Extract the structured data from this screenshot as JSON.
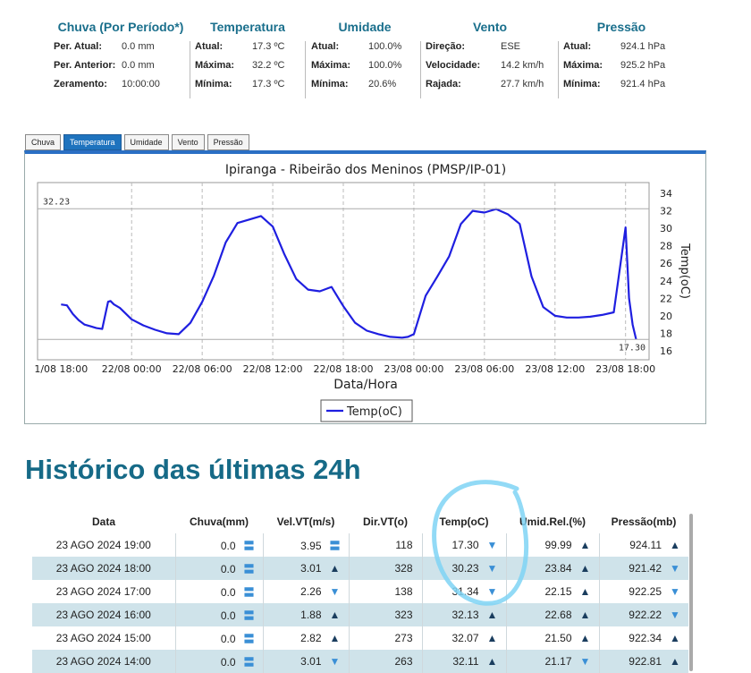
{
  "summary": {
    "chuva": {
      "title": "Chuva (Por Período*)",
      "rows": [
        {
          "label": "Per. Atual:",
          "value": "0.0 mm"
        },
        {
          "label": "Per. Anterior:",
          "value": "0.0 mm"
        },
        {
          "label": "Zeramento:",
          "value": "10:00:00"
        }
      ]
    },
    "temperatura": {
      "title": "Temperatura",
      "rows": [
        {
          "label": "Atual:",
          "value": "17.3 ºC"
        },
        {
          "label": "Máxima:",
          "value": "32.2 ºC"
        },
        {
          "label": "Mínima:",
          "value": "17.3 ºC"
        }
      ]
    },
    "umidade": {
      "title": "Umidade",
      "rows": [
        {
          "label": "Atual:",
          "value": "100.0%"
        },
        {
          "label": "Máxima:",
          "value": "100.0%"
        },
        {
          "label": "Mínima:",
          "value": "20.6%"
        }
      ]
    },
    "vento": {
      "title": "Vento",
      "rows": [
        {
          "label": "Direção:",
          "value": "ESE"
        },
        {
          "label": "Velocidade:",
          "value": "14.2 km/h"
        },
        {
          "label": "Rajada:",
          "value": "27.7 km/h"
        }
      ]
    },
    "pressao": {
      "title": "Pressão",
      "rows": [
        {
          "label": "Atual:",
          "value": "924.1 hPa"
        },
        {
          "label": "Máxima:",
          "value": "925.2 hPa"
        },
        {
          "label": "Mínima:",
          "value": "921.4 hPa"
        }
      ]
    }
  },
  "tabs": [
    "Chuva",
    "Temperatura",
    "Umidade",
    "Vento",
    "Pressão"
  ],
  "active_tab": "Temperatura",
  "chart_data": {
    "type": "line",
    "title": "Ipiranga - Ribeirão dos Meninos (PMSP/IP-01)",
    "xlabel": "Data/Hora",
    "ylabel": "Temp(oC)",
    "x_ticks": [
      "1/08 18:00",
      "22/08 00:00",
      "22/08 06:00",
      "22/08 12:00",
      "22/08 18:00",
      "23/08 00:00",
      "23/08 06:00",
      "23/08 12:00",
      "23/08 18:00"
    ],
    "y_ticks": [
      "16",
      "18",
      "20",
      "22",
      "24",
      "26",
      "28",
      "30",
      "32",
      "34"
    ],
    "ylim": [
      16,
      34
    ],
    "grid": true,
    "legend": "bottom-center",
    "max_label": "32.23",
    "last_label": "17.30",
    "series": [
      {
        "name": "Temp(oC)",
        "color": "#1f1fe0",
        "x_hours": [
          0,
          0.5,
          1,
          1.5,
          2,
          2.5,
          3,
          3.5,
          4,
          4.2,
          4.5,
          5,
          6,
          7,
          8,
          9,
          10,
          11,
          12,
          13,
          14,
          15,
          16,
          17,
          17.5,
          18,
          19,
          20,
          21,
          22,
          23,
          24,
          25,
          26,
          27,
          28,
          29,
          29.5,
          30,
          31,
          32,
          33,
          34,
          35,
          36,
          37,
          38,
          39,
          40,
          41,
          42,
          43,
          44,
          45,
          46,
          47,
          48,
          48.3,
          48.6,
          48.9
        ],
        "values": [
          21.3,
          21.2,
          20.2,
          19.5,
          19.0,
          18.8,
          18.6,
          18.5,
          21.6,
          21.7,
          21.3,
          20.9,
          19.6,
          18.9,
          18.4,
          18.0,
          17.9,
          19.2,
          21.6,
          24.6,
          28.4,
          30.6,
          31.0,
          31.4,
          30.8,
          30.2,
          27.0,
          24.2,
          23.0,
          22.8,
          23.3,
          21.1,
          19.2,
          18.3,
          17.9,
          17.6,
          17.5,
          17.6,
          17.9,
          22.3,
          24.5,
          26.8,
          30.5,
          32.0,
          31.8,
          32.2,
          31.6,
          30.5,
          24.5,
          21.0,
          20.0,
          19.8,
          19.8,
          19.9,
          20.1,
          20.4,
          30.1,
          22.0,
          19.0,
          17.3
        ]
      }
    ]
  },
  "history": {
    "title": "Histórico das últimas 24h",
    "columns": [
      "Data",
      "Chuva(mm)",
      "Vel.VT(m/s)",
      "Dir.VT(o)",
      "Temp(oC)",
      "Umid.Rel.(%)",
      "Pressão(mb)"
    ],
    "rows": [
      {
        "data": "23 AGO 2024 19:00",
        "chuva": "0.0",
        "chuva_t": "eq",
        "vel": "3.95",
        "vel_t": "eq",
        "dir": "118",
        "temp": "17.30",
        "temp_t": "down",
        "umid": "99.99",
        "umid_t": "up",
        "pres": "924.11",
        "pres_t": "up"
      },
      {
        "data": "23 AGO 2024 18:00",
        "chuva": "0.0",
        "chuva_t": "eq",
        "vel": "3.01",
        "vel_t": "up",
        "dir": "328",
        "temp": "30.23",
        "temp_t": "down",
        "umid": "23.84",
        "umid_t": "up",
        "pres": "921.42",
        "pres_t": "down"
      },
      {
        "data": "23 AGO 2024 17:00",
        "chuva": "0.0",
        "chuva_t": "eq",
        "vel": "2.26",
        "vel_t": "down",
        "dir": "138",
        "temp": "31.34",
        "temp_t": "down",
        "umid": "22.15",
        "umid_t": "up",
        "pres": "922.25",
        "pres_t": "down"
      },
      {
        "data": "23 AGO 2024 16:00",
        "chuva": "0.0",
        "chuva_t": "eq",
        "vel": "1.88",
        "vel_t": "up",
        "dir": "323",
        "temp": "32.13",
        "temp_t": "up",
        "umid": "22.68",
        "umid_t": "up",
        "pres": "922.22",
        "pres_t": "down"
      },
      {
        "data": "23 AGO 2024 15:00",
        "chuva": "0.0",
        "chuva_t": "eq",
        "vel": "2.82",
        "vel_t": "up",
        "dir": "273",
        "temp": "32.07",
        "temp_t": "up",
        "umid": "21.50",
        "umid_t": "up",
        "pres": "922.34",
        "pres_t": "up"
      },
      {
        "data": "23 AGO 2024 14:00",
        "chuva": "0.0",
        "chuva_t": "eq",
        "vel": "3.01",
        "vel_t": "down",
        "dir": "263",
        "temp": "32.11",
        "temp_t": "up",
        "umid": "21.17",
        "umid_t": "down",
        "pres": "922.81",
        "pres_t": "up"
      }
    ]
  },
  "colors": {
    "accent": "#1e73be",
    "title": "#166a87",
    "row_alt": "#cfe3ea",
    "arrow_up": "#1a3d5e",
    "arrow_down": "#3a8fd6",
    "annotation": "#7fd4f5"
  }
}
